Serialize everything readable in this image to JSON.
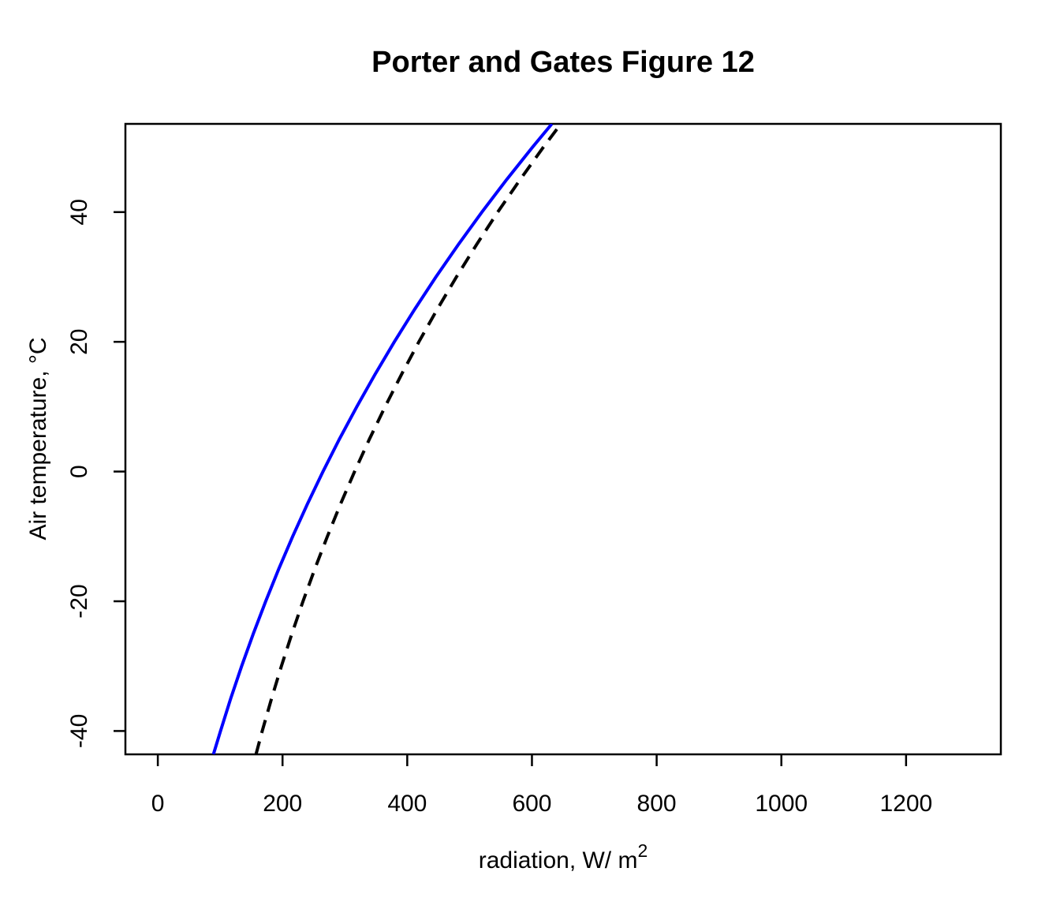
{
  "chart_data": {
    "type": "line",
    "title": "Porter and Gates Figure 12",
    "xlabel": "radiation, W/ m²",
    "xlabel_main": "radiation, W/ m",
    "xlabel_sup": "2",
    "ylabel": "Air temperature, °C",
    "x_tick_labels": [
      "0",
      "200",
      "400",
      "600",
      "800",
      "1000",
      "1200"
    ],
    "x_ticks": [
      0,
      200,
      400,
      600,
      800,
      1000,
      1200
    ],
    "y_tick_labels": [
      "-40",
      "-20",
      "0",
      "20",
      "40"
    ],
    "y_ticks": [
      -40,
      -20,
      0,
      20,
      40
    ],
    "xlim": [
      -52,
      1352
    ],
    "ylim": [
      -43.6,
      53.6
    ],
    "grid": false,
    "legend": "none",
    "background_color": "#ffffff",
    "axis_color": "#000000",
    "series": [
      {
        "name": "blue-solid",
        "color": "#0000ff",
        "style": "solid",
        "line_width": 4,
        "points_format": [
          "radiation_W_per_m2",
          "air_temperature_C"
        ],
        "points": [
          [
            89.2,
            -43.6
          ],
          [
            100.5,
            -40
          ],
          [
            116.9,
            -35
          ],
          [
            134.5,
            -30
          ],
          [
            153.2,
            -25
          ],
          [
            173.0,
            -20
          ],
          [
            194.0,
            -15
          ],
          [
            216.3,
            -10
          ],
          [
            239.9,
            -5
          ],
          [
            264.9,
            0
          ],
          [
            291.2,
            5
          ],
          [
            319.1,
            10
          ],
          [
            348.4,
            15
          ],
          [
            379.3,
            20
          ],
          [
            411.8,
            25
          ],
          [
            446.0,
            30
          ],
          [
            482.0,
            35
          ],
          [
            519.7,
            40
          ],
          [
            559.3,
            45
          ],
          [
            600.8,
            50
          ],
          [
            631.9,
            53.6
          ]
        ]
      },
      {
        "name": "black-dashed",
        "color": "#000000",
        "style": "dashed",
        "line_width": 4,
        "points_format": [
          "radiation_W_per_m2",
          "air_temperature_C"
        ],
        "points": [
          [
            157.4,
            -43.6
          ],
          [
            167.5,
            -40
          ],
          [
            182.4,
            -35
          ],
          [
            198.2,
            -30
          ],
          [
            215.0,
            -25
          ],
          [
            232.9,
            -20
          ],
          [
            251.8,
            -15
          ],
          [
            271.9,
            -10
          ],
          [
            293.1,
            -5
          ],
          [
            315.6,
            0
          ],
          [
            339.4,
            5
          ],
          [
            364.5,
            10
          ],
          [
            390.9,
            15
          ],
          [
            418.7,
            20
          ],
          [
            448.0,
            25
          ],
          [
            478.9,
            30
          ],
          [
            511.3,
            35
          ],
          [
            545.2,
            40
          ],
          [
            580.9,
            45
          ],
          [
            618.3,
            50
          ],
          [
            646.3,
            53.6
          ]
        ]
      }
    ]
  }
}
